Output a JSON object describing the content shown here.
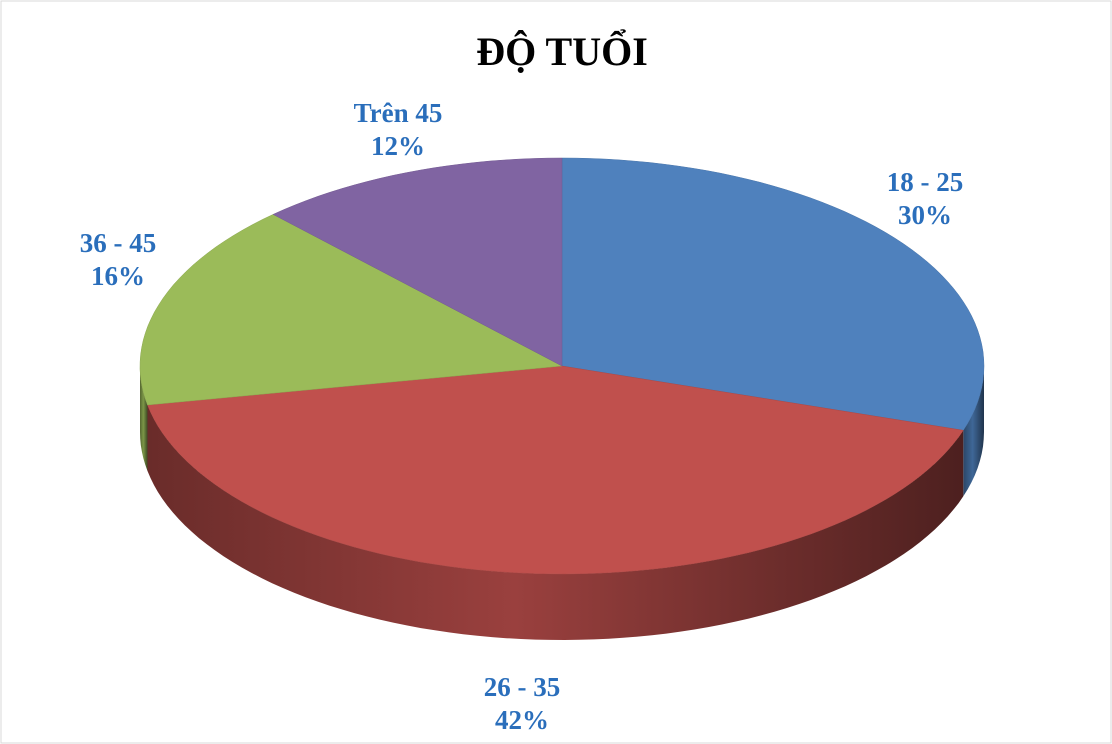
{
  "chart_data": {
    "type": "pie",
    "title": "ĐỘ TUỔI",
    "categories": [
      "18 - 25",
      "26 - 35",
      "36 - 45",
      "Trên 45"
    ],
    "values": [
      30,
      42,
      16,
      12
    ],
    "value_labels": [
      "30%",
      "42%",
      "16%",
      "12%"
    ],
    "colors": [
      "#4f81bd",
      "#c0504d",
      "#9bbb59",
      "#8064a2"
    ]
  }
}
